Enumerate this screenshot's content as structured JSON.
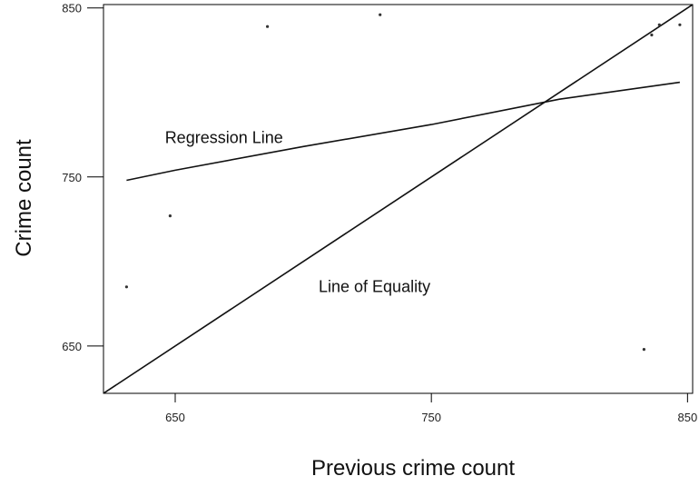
{
  "chart_data": {
    "type": "scatter",
    "title": "",
    "xlabel": "Previous crime count",
    "ylabel": "Crime count",
    "xlim": [
      622,
      852
    ],
    "ylim": [
      622,
      852
    ],
    "x_ticks": [
      650,
      750,
      850
    ],
    "y_ticks": [
      650,
      750,
      850
    ],
    "x_tick_labels": [
      "650",
      "750",
      "850"
    ],
    "y_tick_labels": [
      "650",
      "750",
      "850"
    ],
    "grid": false,
    "points": [
      {
        "x": 631,
        "y": 685
      },
      {
        "x": 648,
        "y": 727
      },
      {
        "x": 686,
        "y": 839
      },
      {
        "x": 730,
        "y": 846
      },
      {
        "x": 833,
        "y": 648
      },
      {
        "x": 836,
        "y": 834
      },
      {
        "x": 839,
        "y": 840
      },
      {
        "x": 847,
        "y": 840
      }
    ],
    "lines": [
      {
        "name": "Regression Line",
        "points": [
          [
            631,
            748
          ],
          [
            650,
            754
          ],
          [
            700,
            768
          ],
          [
            750,
            781
          ],
          [
            800,
            796
          ],
          [
            847,
            806
          ]
        ]
      },
      {
        "name": "Line of Equality",
        "points": [
          [
            622,
            622
          ],
          [
            852,
            852
          ]
        ]
      }
    ],
    "annotations": [
      {
        "text": "Regression Line",
        "x": 646,
        "y": 770
      },
      {
        "text": "Line of Equality",
        "x": 706,
        "y": 682
      }
    ]
  }
}
